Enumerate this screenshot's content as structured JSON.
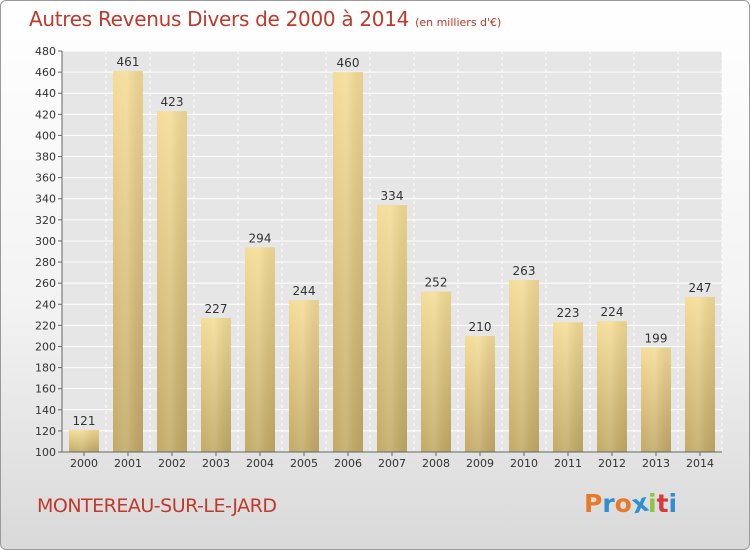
{
  "header": {
    "title": "Autres Revenus Divers de 2000 à 2014",
    "subtitle": "(en milliers d'€)"
  },
  "footer": {
    "city": "MONTEREAU-SUR-LE-JARD",
    "brand": "Proxiti",
    "brand_colors": [
      "#e8782a",
      "#2f8fd0",
      "#e8782a",
      "#2f8fd0",
      "#8cc63f",
      "#d63a3a",
      "#2f8fd0"
    ]
  },
  "chart_data": {
    "type": "bar",
    "categories": [
      "2000",
      "2001",
      "2002",
      "2003",
      "2004",
      "2005",
      "2006",
      "2007",
      "2008",
      "2009",
      "2010",
      "2011",
      "2012",
      "2013",
      "2014"
    ],
    "values": [
      121,
      461,
      423,
      227,
      294,
      244,
      460,
      334,
      252,
      210,
      263,
      223,
      224,
      199,
      247
    ],
    "xlabel": "",
    "ylabel": "",
    "ylim": [
      100,
      480
    ],
    "yticks": [
      100,
      120,
      140,
      160,
      180,
      200,
      220,
      240,
      260,
      280,
      300,
      320,
      340,
      360,
      380,
      400,
      420,
      440,
      460,
      480
    ],
    "grid": true,
    "bar_color_top": "#f5dd98",
    "bar_color_bottom": "#c2aa66"
  }
}
